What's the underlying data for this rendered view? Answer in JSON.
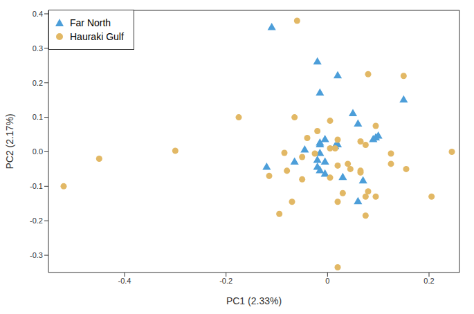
{
  "chart_data": {
    "type": "scatter",
    "x_label": "PC1 (2.33%)",
    "y_label": "PC2 (2.17%)",
    "xlim": [
      -0.55,
      0.26
    ],
    "xticks": [
      -0.4,
      -0.2,
      0,
      0.2
    ],
    "ylim": [
      -0.35,
      0.41
    ],
    "yticks": [
      -0.3,
      -0.2,
      -0.1,
      {
        "value": 0,
        "label": "0.0"
      },
      0.1,
      0.2,
      0.3,
      0.4
    ],
    "grid": false,
    "legend": "top-left",
    "series": [
      {
        "name": "Far North",
        "color": "#4c9ed9",
        "marker": "triangle",
        "x": [
          -0.11,
          -0.02,
          0.02,
          -0.015,
          0.05,
          0.15,
          0.06,
          0.1,
          0.095,
          0.09,
          -0.005,
          -0.015,
          -0.015,
          0.02,
          0.015,
          -0.045,
          -0.015,
          -0.02,
          -0.005,
          -0.065,
          -0.12,
          -0.02,
          -0.015,
          -0.005,
          0.03,
          0.07,
          0.06
        ],
        "values": [
          0.36,
          0.26,
          0.22,
          0.17,
          0.11,
          0.15,
          0.08,
          0.045,
          0.04,
          0.035,
          0.035,
          0.025,
          0.02,
          0.02,
          0.015,
          0.005,
          -0.005,
          -0.025,
          -0.03,
          -0.03,
          -0.045,
          -0.045,
          -0.055,
          -0.065,
          -0.075,
          -0.085,
          -0.145
        ]
      },
      {
        "name": "Hauraki Gulf",
        "color": "#e2b865",
        "marker": "circle",
        "x": [
          -0.06,
          -0.52,
          -0.45,
          -0.3,
          -0.175,
          -0.065,
          0.08,
          0.15,
          -0.02,
          -0.04,
          0.005,
          0.095,
          0.065,
          0.075,
          0.02,
          0.005,
          0.015,
          -0.025,
          -0.085,
          0.125,
          0.245,
          -0.05,
          -0.115,
          -0.08,
          0.02,
          0.04,
          0.045,
          0.065,
          0.065,
          0.005,
          -0.05,
          0.125,
          0.155,
          0.03,
          0.08,
          0.075,
          0.095,
          -0.07,
          0.02,
          0.205,
          -0.095,
          0.075,
          0.02
        ],
        "values": [
          0.38,
          -0.1,
          -0.02,
          0.003,
          0.1,
          0.1,
          0.225,
          0.22,
          0.06,
          0.04,
          0.09,
          0.075,
          0.03,
          0.02,
          0.035,
          0.01,
          0.01,
          -0.005,
          -0.003,
          -0.005,
          0,
          -0.015,
          -0.07,
          -0.055,
          -0.04,
          -0.035,
          -0.05,
          -0.055,
          -0.06,
          -0.075,
          -0.08,
          -0.035,
          -0.05,
          -0.12,
          -0.115,
          -0.13,
          -0.13,
          -0.145,
          -0.145,
          -0.13,
          -0.18,
          -0.185,
          -0.335
        ]
      }
    ]
  }
}
